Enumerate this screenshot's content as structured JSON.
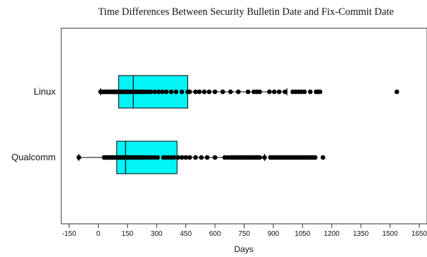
{
  "chart_data": {
    "type": "box",
    "title": "Time Differences Between Security Bulletin Date and Fix-Commit Date",
    "xlabel": "Days",
    "ylabel": "",
    "xlim": [
      -190,
      1690
    ],
    "xticks": [
      -150,
      0,
      150,
      300,
      450,
      600,
      750,
      900,
      1050,
      1200,
      1350,
      1500,
      1650
    ],
    "categories": [
      "Linux",
      "Qualcomm"
    ],
    "box_color": "#00f5f5",
    "point_color": "#000000",
    "series": [
      {
        "name": "Linux",
        "whisker_low": 12,
        "q1": 105,
        "median": 180,
        "q3": 460,
        "whisker_high": 970,
        "points": [
          12,
          18,
          25,
          32,
          38,
          44,
          50,
          55,
          60,
          65,
          70,
          75,
          80,
          85,
          90,
          95,
          100,
          105,
          110,
          115,
          120,
          125,
          130,
          135,
          140,
          150,
          160,
          170,
          180,
          190,
          200,
          210,
          220,
          230,
          240,
          255,
          270,
          290,
          310,
          330,
          350,
          375,
          400,
          430,
          460,
          470,
          500,
          520,
          545,
          570,
          600,
          640,
          680,
          720,
          770,
          800,
          815,
          830,
          880,
          905,
          930,
          960,
          1000,
          1015,
          1030,
          1045,
          1060,
          1090,
          1120,
          1130,
          1140,
          1535
        ]
      },
      {
        "name": "Qualcomm",
        "whisker_low": -100,
        "q1": 95,
        "median": 140,
        "q3": 405,
        "whisker_high": 855,
        "points": [
          -100,
          30,
          38,
          45,
          52,
          58,
          64,
          70,
          76,
          82,
          88,
          94,
          100,
          108,
          116,
          124,
          132,
          140,
          150,
          160,
          170,
          180,
          190,
          200,
          210,
          220,
          232,
          245,
          260,
          275,
          290,
          305,
          335,
          345,
          360,
          375,
          390,
          410,
          430,
          450,
          470,
          500,
          530,
          560,
          600,
          650,
          665,
          680,
          690,
          700,
          710,
          720,
          730,
          740,
          750,
          760,
          770,
          780,
          790,
          800,
          810,
          820,
          830,
          855,
          885,
          895,
          905,
          915,
          925,
          935,
          945,
          955,
          965,
          975,
          985,
          995,
          1005,
          1015,
          1025,
          1035,
          1045,
          1055,
          1065,
          1075,
          1085,
          1095,
          1105,
          1115,
          1155
        ]
      }
    ]
  }
}
